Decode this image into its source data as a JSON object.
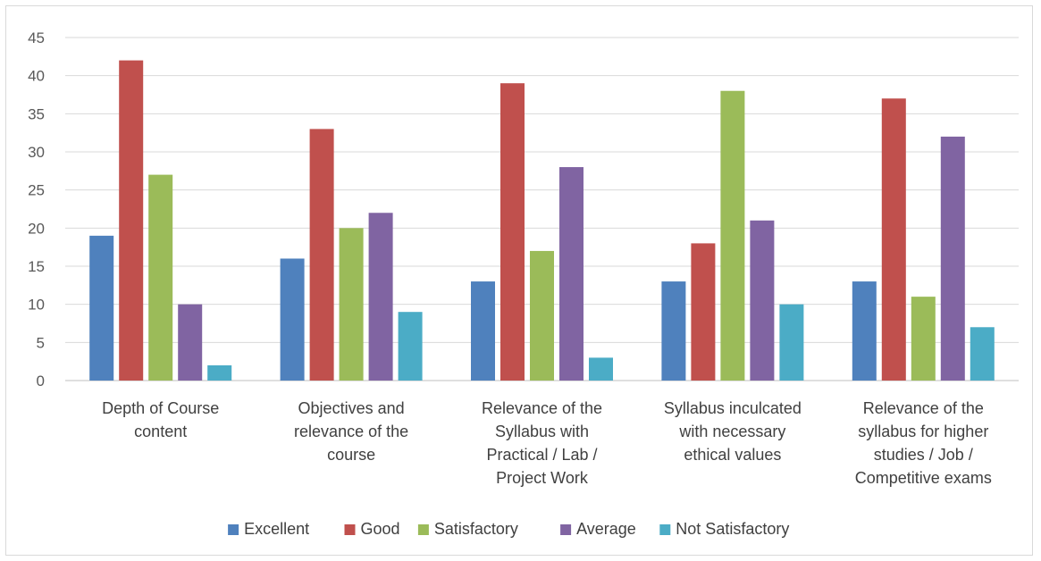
{
  "chart_data": {
    "type": "bar",
    "categories": [
      [
        "Depth of Course",
        "content"
      ],
      [
        "Objectives and",
        "relevance of the",
        "course"
      ],
      [
        "Relevance of the",
        "Syllabus with",
        "Practical / Lab /",
        "Project Work"
      ],
      [
        "Syllabus inculcated",
        "with necessary",
        "ethical values"
      ],
      [
        "Relevance of the",
        "syllabus for higher",
        "studies / Job /",
        "Competitive exams"
      ]
    ],
    "series": [
      {
        "name": "Excellent",
        "color": "#4f81bd",
        "values": [
          19,
          16,
          13,
          13,
          13
        ]
      },
      {
        "name": "Good",
        "color": "#c0504d",
        "values": [
          42,
          33,
          39,
          18,
          37
        ]
      },
      {
        "name": "Satisfactory",
        "color": "#9bbb59",
        "values": [
          27,
          20,
          17,
          38,
          11
        ]
      },
      {
        "name": "Average",
        "color": "#8064a2",
        "values": [
          10,
          22,
          28,
          21,
          32
        ]
      },
      {
        "name": "Not Satisfactory",
        "color": "#4bacc6",
        "values": [
          2,
          9,
          3,
          10,
          7
        ]
      }
    ],
    "ylim": [
      0,
      45
    ],
    "yticks": [
      0,
      5,
      10,
      15,
      20,
      25,
      30,
      35,
      40,
      45
    ],
    "grid": true,
    "legend": "bottom"
  }
}
